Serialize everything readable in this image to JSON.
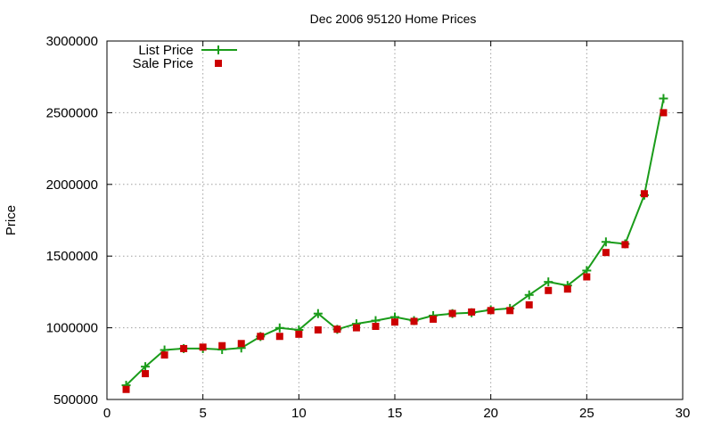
{
  "chart_data": {
    "type": "line",
    "title": "Dec 2006 95120 Home Prices",
    "xlabel": "",
    "ylabel": "Price",
    "xlim": [
      0,
      30
    ],
    "ylim": [
      500000,
      3000000
    ],
    "x_ticks": [
      0,
      5,
      10,
      15,
      20,
      25,
      30
    ],
    "y_ticks": [
      500000,
      1000000,
      1500000,
      2000000,
      2500000,
      3000000
    ],
    "grid": true,
    "legend_position": "top-left",
    "x": [
      1,
      2,
      3,
      4,
      5,
      6,
      7,
      8,
      9,
      10,
      11,
      12,
      13,
      14,
      15,
      16,
      17,
      18,
      19,
      20,
      21,
      22,
      23,
      24,
      25,
      26,
      27,
      28,
      29
    ],
    "series": [
      {
        "name": "List Price",
        "style": "line-plus",
        "color": "#1a9c1a",
        "values": [
          599000,
          729000,
          845000,
          855000,
          855000,
          848000,
          859000,
          939000,
          999000,
          985000,
          1099000,
          989000,
          1028000,
          1050000,
          1075000,
          1050000,
          1085000,
          1099000,
          1105000,
          1125000,
          1135000,
          1229000,
          1320000,
          1295000,
          1399000,
          1599000,
          1585000,
          1925000,
          2599000
        ]
      },
      {
        "name": "Sale Price",
        "style": "square-markers",
        "color": "#cc0000",
        "values": [
          570000,
          680000,
          810000,
          855000,
          865000,
          875000,
          890000,
          940000,
          940000,
          955000,
          985000,
          990000,
          1000000,
          1010000,
          1040000,
          1045000,
          1060000,
          1100000,
          1110000,
          1120000,
          1120000,
          1160000,
          1260000,
          1270000,
          1355000,
          1525000,
          1580000,
          1935000,
          2500000
        ]
      }
    ]
  }
}
